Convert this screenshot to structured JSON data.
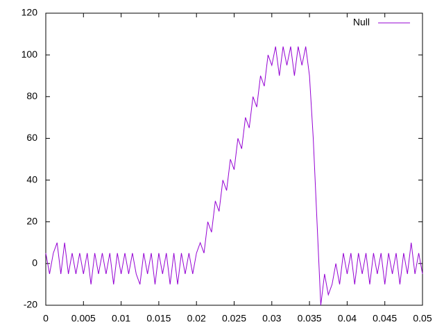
{
  "chart_data": {
    "type": "line",
    "x": [
      0,
      0.0005,
      0.001,
      0.0015,
      0.002,
      0.0025,
      0.003,
      0.0035,
      0.004,
      0.0045,
      0.005,
      0.0055,
      0.006,
      0.0065,
      0.007,
      0.0075,
      0.008,
      0.0085,
      0.009,
      0.0095,
      0.01,
      0.0105,
      0.011,
      0.0115,
      0.012,
      0.0125,
      0.013,
      0.0135,
      0.014,
      0.0145,
      0.015,
      0.0155,
      0.016,
      0.0165,
      0.017,
      0.0175,
      0.018,
      0.0185,
      0.019,
      0.0195,
      0.02,
      0.0205,
      0.021,
      0.0215,
      0.022,
      0.0225,
      0.023,
      0.0235,
      0.024,
      0.0245,
      0.025,
      0.0255,
      0.026,
      0.0265,
      0.027,
      0.0275,
      0.028,
      0.0285,
      0.029,
      0.0295,
      0.03,
      0.0305,
      0.031,
      0.0315,
      0.032,
      0.0325,
      0.033,
      0.0335,
      0.034,
      0.0345,
      0.035,
      0.0355,
      0.036,
      0.0365,
      0.037,
      0.0375,
      0.038,
      0.0385,
      0.039,
      0.0395,
      0.04,
      0.0405,
      0.041,
      0.0415,
      0.042,
      0.0425,
      0.043,
      0.0435,
      0.044,
      0.0445,
      0.045,
      0.0455,
      0.046,
      0.0465,
      0.047,
      0.0475,
      0.048,
      0.0485,
      0.049,
      0.0495,
      0.05
    ],
    "series": [
      {
        "name": "Null",
        "color": "#9400d3",
        "values": [
          5,
          -5,
          5,
          10,
          -5,
          10,
          -5,
          5,
          -5,
          5,
          -5,
          5,
          -10,
          5,
          -5,
          5,
          -5,
          5,
          -10,
          5,
          -5,
          5,
          -5,
          5,
          -5,
          -10,
          5,
          -5,
          5,
          -10,
          5,
          -5,
          5,
          -10,
          5,
          -10,
          5,
          -5,
          5,
          -5,
          5,
          10,
          5,
          20,
          15,
          30,
          25,
          40,
          35,
          50,
          45,
          60,
          55,
          70,
          65,
          80,
          75,
          90,
          85,
          100,
          95,
          104,
          90,
          104,
          95,
          104,
          90,
          104,
          95,
          104,
          90,
          60,
          20,
          -20,
          -5,
          -15,
          -10,
          0,
          -10,
          5,
          -5,
          5,
          -10,
          5,
          -5,
          5,
          -10,
          5,
          -5,
          5,
          -10,
          5,
          -5,
          5,
          -10,
          5,
          -5,
          10,
          -5,
          5,
          -5
        ]
      }
    ],
    "xlim": [
      0,
      0.05
    ],
    "ylim": [
      -20,
      120
    ],
    "xticks": [
      0,
      0.005,
      0.01,
      0.015,
      0.02,
      0.025,
      0.03,
      0.035,
      0.04,
      0.045,
      0.05
    ],
    "yticks": [
      -20,
      0,
      20,
      40,
      60,
      80,
      100,
      120
    ],
    "legend": "top-right"
  }
}
